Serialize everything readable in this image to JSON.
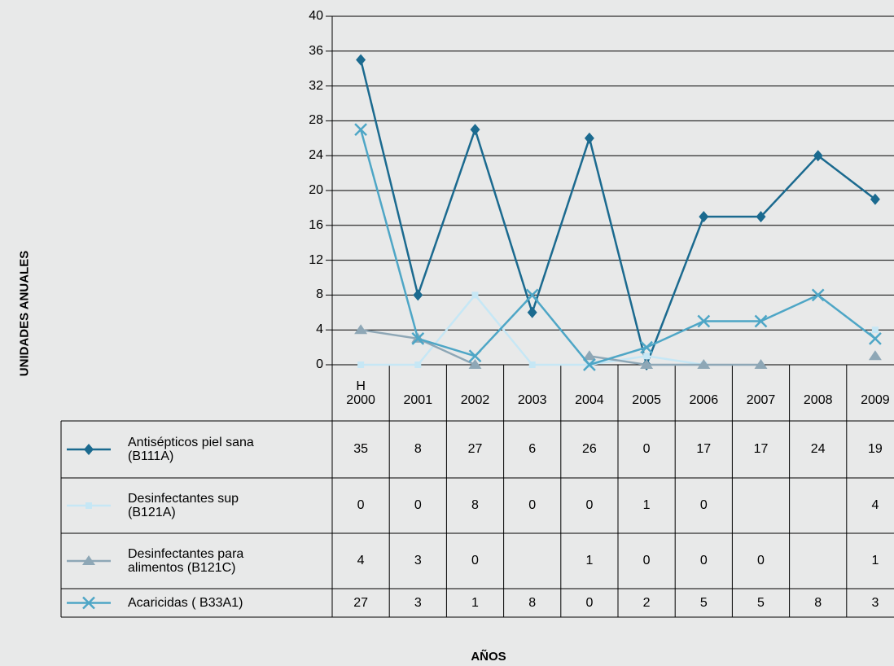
{
  "chart_data": {
    "type": "line",
    "y_label": "UNIDADES ANUALES",
    "x_label": "AÑOS",
    "categories": [
      "H\n2000",
      "2001",
      "2002",
      "2003",
      "2004",
      "2005",
      "2006",
      "2007",
      "2008",
      "2009"
    ],
    "ylim": [
      0,
      40
    ],
    "yticks": [
      0,
      4,
      8,
      12,
      16,
      20,
      24,
      28,
      32,
      36,
      40
    ],
    "grid": true,
    "series": [
      {
        "name": "Antisépticos piel sana\n(B111A)",
        "color": "#1b6a8f",
        "marker": "diamond",
        "values": [
          35,
          8,
          27,
          6,
          26,
          0,
          17,
          17,
          24,
          19
        ]
      },
      {
        "name": "Desinfectantes sup\n(B121A)",
        "color": "#c6e7f5",
        "marker": "square",
        "values": [
          0,
          0,
          8,
          0,
          0,
          1,
          0,
          null,
          null,
          4
        ]
      },
      {
        "name": "Desinfectantes para\nalimentos (B121C)",
        "color": "#8ea7b6",
        "marker": "triangle",
        "values": [
          4,
          3,
          0,
          null,
          1,
          0,
          0,
          0,
          null,
          1
        ]
      },
      {
        "name": "Acaricidas ( B33A1)",
        "color": "#4ea6c6",
        "marker": "cross",
        "values": [
          27,
          3,
          1,
          8,
          0,
          2,
          5,
          5,
          8,
          3
        ]
      }
    ]
  }
}
